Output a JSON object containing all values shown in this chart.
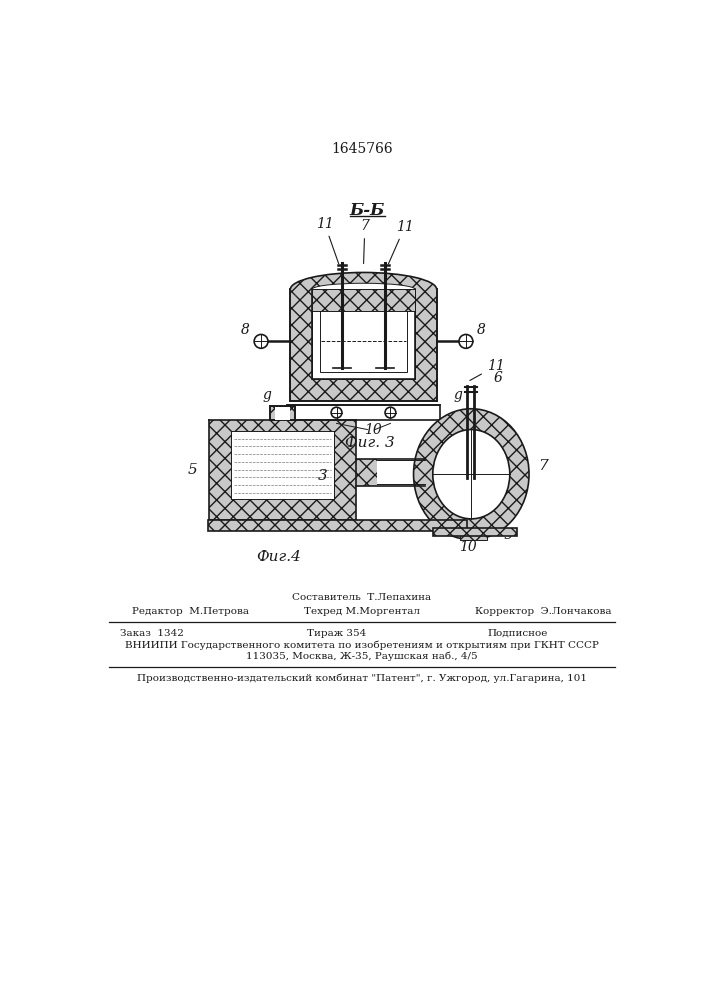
{
  "patent_number": "1645766",
  "fig3_label": "Б-Б",
  "fig3_caption": "Фиг. 3",
  "fig4_caption": "Фиг.4",
  "bg_color": "#ffffff",
  "line_color": "#1a1a1a",
  "footer_line1_left": "Редактор  М.Петрова",
  "footer_line1_mid_top": "Составитель  Т.Лепахина",
  "footer_line1_mid_bot": "Техред М.Моргентал",
  "footer_line1_right": "Корректор  Э.Лончакова",
  "footer_line2_1": "Заказ  1342",
  "footer_line2_2": "Тираж 354",
  "footer_line2_3": "Подписное",
  "footer_line3": "ВНИИПИ Государственного комитета по изобретениям и открытиям при ГКНТ СССР",
  "footer_line4": "113035, Москва, Ж-35, Раушская наб., 4/5",
  "footer_line5": "Производственно-издательский комбинат \"Патент\", г. Ужгород, ул.Гагарина, 101"
}
